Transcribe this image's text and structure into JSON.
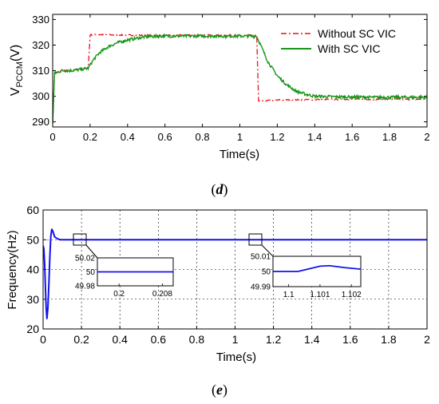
{
  "chart_data": [
    {
      "type": "line",
      "panel": "(d)",
      "panel_open": "(",
      "panel_letter": "d",
      "panel_close": ")",
      "title": "",
      "xlabel": "Time(s)",
      "ylabel_main": "V",
      "ylabel_sub": "PCCM",
      "ylabel_unit": "(V)",
      "xlim": [
        0,
        2
      ],
      "ylim": [
        288,
        332
      ],
      "x_ticks": [
        0,
        0.2,
        0.4,
        0.6,
        0.8,
        1,
        1.2,
        1.4,
        1.6,
        1.8,
        2
      ],
      "x_tick_labels": [
        "0",
        "0.2",
        "0.4",
        "0.6",
        "0.8",
        "1",
        "1.2",
        "1.4",
        "1.6",
        "1.8",
        "2"
      ],
      "y_ticks": [
        290,
        300,
        310,
        320,
        330
      ],
      "y_tick_labels": [
        "290",
        "300",
        "310",
        "320",
        "330"
      ],
      "grid": false,
      "legend_position": "top-right",
      "series": [
        {
          "name": "Without SC VIC",
          "color": "#e8141c",
          "dash": "dash-dot",
          "x": [
            0,
            0.01,
            0.05,
            0.1,
            0.15,
            0.19,
            0.2,
            0.25,
            0.3,
            0.5,
            0.8,
            1.0,
            1.09,
            1.1,
            1.15,
            1.2,
            1.3,
            1.5,
            1.8,
            2.0
          ],
          "y": [
            290,
            309,
            310,
            310.3,
            310.5,
            311,
            324,
            324.1,
            324,
            323.8,
            323.9,
            323.8,
            323.8,
            298,
            298.3,
            298.5,
            298.6,
            298.8,
            298.8,
            298.8
          ]
        },
        {
          "name": "With SC VIC",
          "color": "#179617",
          "dash": "solid",
          "x": [
            0,
            0.01,
            0.05,
            0.1,
            0.15,
            0.19,
            0.22,
            0.25,
            0.3,
            0.35,
            0.4,
            0.5,
            0.6,
            0.8,
            1.0,
            1.09,
            1.12,
            1.15,
            1.2,
            1.25,
            1.3,
            1.35,
            1.4,
            1.5,
            1.7,
            2.0
          ],
          "y": [
            289,
            309,
            310,
            310,
            310.5,
            311,
            314.5,
            317,
            319.5,
            321,
            322,
            323.3,
            323.5,
            323.5,
            323.5,
            323.5,
            318.5,
            313.5,
            308,
            304.5,
            302,
            300.8,
            300,
            299.8,
            299.6,
            299.6
          ]
        }
      ]
    },
    {
      "type": "line",
      "panel": "(e)",
      "panel_open": "(",
      "panel_letter": "e",
      "panel_close": ")",
      "title": "",
      "xlabel": "Time(s)",
      "ylabel": "Frequency(Hz)",
      "xlim": [
        0,
        2
      ],
      "ylim": [
        20,
        60
      ],
      "x_ticks": [
        0,
        0.2,
        0.4,
        0.6,
        0.8,
        1,
        1.2,
        1.4,
        1.6,
        1.8,
        2
      ],
      "x_tick_labels": [
        "0",
        "0.2",
        "0.4",
        "0.6",
        "0.8",
        "1",
        "1.2",
        "1.4",
        "1.6",
        "1.8",
        "2"
      ],
      "y_ticks": [
        20,
        30,
        40,
        50,
        60
      ],
      "y_tick_labels": [
        "20",
        "30",
        "40",
        "50",
        "60"
      ],
      "grid": true,
      "series": [
        {
          "color": "#1414e6",
          "x": [
            0,
            0.004,
            0.008,
            0.012,
            0.016,
            0.02,
            0.025,
            0.03,
            0.035,
            0.04,
            0.045,
            0.05,
            0.055,
            0.06,
            0.07,
            0.08,
            0.09,
            0.1,
            0.12,
            0.15,
            0.2,
            0.5,
            1.0,
            1.5,
            2.0
          ],
          "y": [
            48,
            47,
            42,
            34,
            27,
            23.5,
            27,
            35,
            44,
            51,
            53.5,
            53,
            52,
            51,
            50.5,
            50.2,
            50,
            50,
            50,
            50,
            50,
            50,
            50,
            50,
            50
          ]
        }
      ],
      "insets": [
        {
          "center_x": 0.2,
          "center_y": 50,
          "xlim": [
            0.196,
            0.21
          ],
          "ylim": [
            49.98,
            50.02
          ],
          "x_ticks": [
            0.2,
            0.208
          ],
          "x_tick_labels": [
            "0.2",
            "0.208"
          ],
          "y_ticks": [
            49.98,
            50,
            50.02
          ],
          "y_tick_labels": [
            "49.98",
            "50",
            "50.02"
          ],
          "x": [
            0.196,
            0.21
          ],
          "y": [
            50,
            50
          ]
        },
        {
          "center_x": 1.1,
          "center_y": 50,
          "xlim": [
            1.0995,
            1.1023
          ],
          "ylim": [
            49.99,
            50.01
          ],
          "x_ticks": [
            1.1,
            1.101,
            1.102
          ],
          "x_tick_labels": [
            "1.1",
            "1.101",
            "1.102"
          ],
          "y_ticks": [
            49.99,
            50,
            50.01
          ],
          "y_tick_labels": [
            "49.99",
            "50",
            "50.01"
          ],
          "x": [
            1.0995,
            1.1003,
            1.1007,
            1.101,
            1.1013,
            1.1018,
            1.1023
          ],
          "y": [
            50,
            50,
            50.002,
            50.0035,
            50.0038,
            50.0025,
            50.0015
          ]
        }
      ]
    }
  ]
}
